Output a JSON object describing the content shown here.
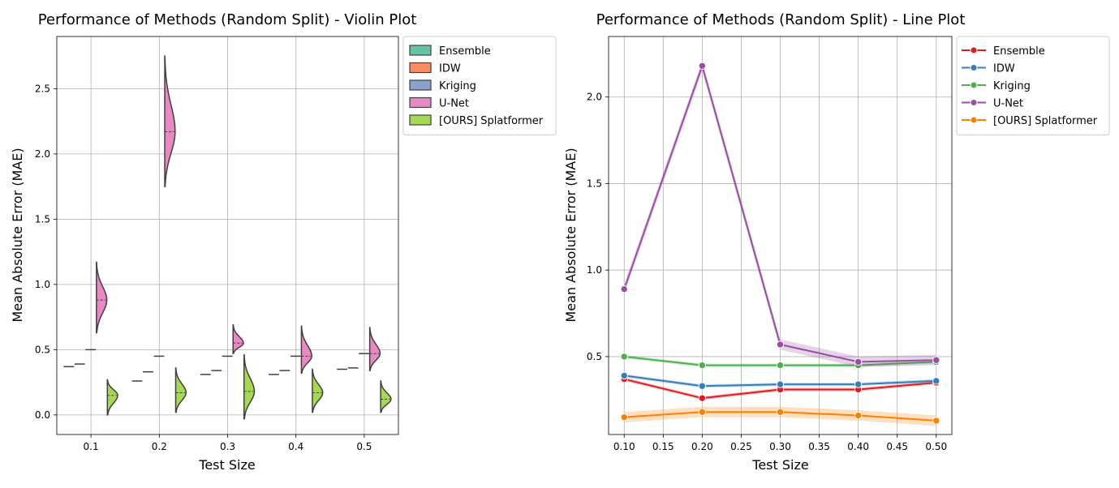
{
  "chart_data": [
    {
      "type": "violin",
      "title": "Performance of Methods (Random Split) - Violin Plot",
      "xlabel": "Test Size",
      "ylabel": "Mean Absolute Error (MAE)",
      "categories": [
        "0.1",
        "0.2",
        "0.3",
        "0.4",
        "0.5"
      ],
      "ylim": [
        -0.15,
        2.9
      ],
      "yticks": [
        "0.0",
        "0.5",
        "1.0",
        "1.5",
        "2.0",
        "2.5"
      ],
      "grid": true,
      "legend": "outside-upper-right",
      "series": [
        {
          "name": "Ensemble",
          "color": "#66c2a5",
          "medians": [
            0.37,
            0.26,
            0.31,
            0.31,
            0.35
          ]
        },
        {
          "name": "IDW",
          "color": "#fc8d62",
          "medians": [
            0.39,
            0.33,
            0.34,
            0.34,
            0.36
          ]
        },
        {
          "name": "Kriging",
          "color": "#8da0cb",
          "medians": [
            0.5,
            0.45,
            0.45,
            0.45,
            0.47
          ]
        },
        {
          "name": "U-Net",
          "color": "#e78ac3",
          "medians": [
            0.88,
            2.17,
            0.55,
            0.45,
            0.47
          ],
          "ranges": [
            [
              0.63,
              1.17
            ],
            [
              1.75,
              2.75
            ],
            [
              0.47,
              0.69
            ],
            [
              0.32,
              0.68
            ],
            [
              0.34,
              0.67
            ]
          ]
        },
        {
          "name": "[OURS] Splatformer",
          "color": "#a6d854",
          "medians": [
            0.15,
            0.17,
            0.18,
            0.17,
            0.12
          ],
          "ranges": [
            [
              0.0,
              0.27
            ],
            [
              0.02,
              0.36
            ],
            [
              -0.03,
              0.46
            ],
            [
              0.02,
              0.35
            ],
            [
              0.02,
              0.26
            ]
          ]
        }
      ]
    },
    {
      "type": "line",
      "title": "Performance of Methods (Random Split) - Line Plot",
      "xlabel": "Test Size",
      "ylabel": "Mean Absolute Error (MAE)",
      "x": [
        0.1,
        0.2,
        0.3,
        0.4,
        0.5
      ],
      "xticks": [
        "0.10",
        "0.15",
        "0.20",
        "0.25",
        "0.30",
        "0.35",
        "0.40",
        "0.45",
        "0.50"
      ],
      "yticks": [
        "0.5",
        "1.0",
        "1.5",
        "2.0"
      ],
      "xlim": [
        0.08,
        0.52
      ],
      "ylim": [
        0.05,
        2.35
      ],
      "grid": true,
      "legend": "outside-upper-right",
      "series": [
        {
          "name": "Ensemble",
          "color": "#e41a1c",
          "values": [
            0.37,
            0.26,
            0.31,
            0.31,
            0.35
          ],
          "band": 0.01
        },
        {
          "name": "IDW",
          "color": "#377eb8",
          "values": [
            0.39,
            0.33,
            0.34,
            0.34,
            0.36
          ],
          "band": 0.01
        },
        {
          "name": "Kriging",
          "color": "#4daf4a",
          "values": [
            0.5,
            0.45,
            0.45,
            0.45,
            0.47
          ],
          "band": 0.01
        },
        {
          "name": "U-Net",
          "color": "#984ea3",
          "values": [
            0.89,
            2.18,
            0.57,
            0.47,
            0.48
          ],
          "band": 0.03
        },
        {
          "name": "[OURS] Splatformer",
          "color": "#ff7f00",
          "values": [
            0.15,
            0.18,
            0.18,
            0.16,
            0.13
          ],
          "band": 0.03
        }
      ]
    }
  ]
}
